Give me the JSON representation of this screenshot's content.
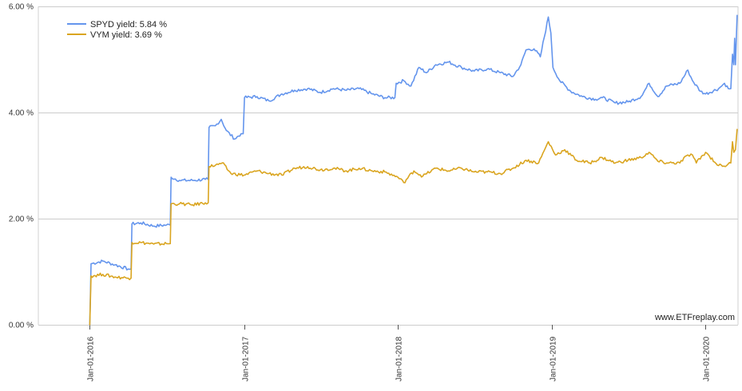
{
  "chart_data": {
    "type": "line",
    "x_axis": {
      "type": "date",
      "min": "2015-09-01",
      "max": "2020-03-18",
      "tick_labels": [
        "Jan-01-2016",
        "Jan-01-2017",
        "Jan-01-2018",
        "Jan-01-2019",
        "Jan-01-2020"
      ],
      "ticks": [
        "2016-01-01",
        "2017-01-01",
        "2018-01-01",
        "2019-01-01",
        "2020-01-01"
      ]
    },
    "y_axis": {
      "min": 0,
      "max": 6,
      "ticks": [
        0,
        2,
        4,
        6
      ],
      "tick_labels": [
        "0.00 %",
        "2.00 %",
        "4.00 %",
        "6.00 %"
      ],
      "grid": true
    },
    "legend": {
      "position": "top-left"
    },
    "watermark": "www.ETFreplay.com",
    "series": [
      {
        "name": "SPYD yield: 5.84 %",
        "color": "#6495ed",
        "points": [
          [
            "2015-12-31",
            0
          ],
          [
            "2016-01-01",
            0.0
          ],
          [
            "2016-01-04",
            1.15
          ],
          [
            "2016-02-01",
            1.2
          ],
          [
            "2016-03-01",
            1.13
          ],
          [
            "2016-04-01",
            1.05
          ],
          [
            "2016-04-08",
            1.05
          ],
          [
            "2016-04-10",
            1.9
          ],
          [
            "2016-05-01",
            1.92
          ],
          [
            "2016-06-01",
            1.86
          ],
          [
            "2016-07-01",
            1.88
          ],
          [
            "2016-07-10",
            1.88
          ],
          [
            "2016-07-12",
            2.78
          ],
          [
            "2016-08-01",
            2.72
          ],
          [
            "2016-09-01",
            2.72
          ],
          [
            "2016-10-01",
            2.74
          ],
          [
            "2016-10-08",
            2.74
          ],
          [
            "2016-10-10",
            3.72
          ],
          [
            "2016-10-25",
            3.75
          ],
          [
            "2016-11-08",
            3.87
          ],
          [
            "2016-11-20",
            3.66
          ],
          [
            "2016-12-10",
            3.5
          ],
          [
            "2016-12-25",
            3.6
          ],
          [
            "2016-12-30",
            3.6
          ],
          [
            "2017-01-02",
            4.28
          ],
          [
            "2017-02-01",
            4.3
          ],
          [
            "2017-03-01",
            4.22
          ],
          [
            "2017-04-01",
            4.35
          ],
          [
            "2017-05-01",
            4.42
          ],
          [
            "2017-06-01",
            4.45
          ],
          [
            "2017-07-01",
            4.38
          ],
          [
            "2017-08-01",
            4.45
          ],
          [
            "2017-09-01",
            4.42
          ],
          [
            "2017-10-01",
            4.45
          ],
          [
            "2017-11-01",
            4.35
          ],
          [
            "2017-12-01",
            4.28
          ],
          [
            "2017-12-25",
            4.28
          ],
          [
            "2017-12-28",
            4.55
          ],
          [
            "2018-01-15",
            4.6
          ],
          [
            "2018-02-01",
            4.5
          ],
          [
            "2018-02-20",
            4.85
          ],
          [
            "2018-03-10",
            4.75
          ],
          [
            "2018-04-01",
            4.9
          ],
          [
            "2018-05-01",
            4.95
          ],
          [
            "2018-06-01",
            4.85
          ],
          [
            "2018-07-01",
            4.78
          ],
          [
            "2018-08-01",
            4.82
          ],
          [
            "2018-09-01",
            4.75
          ],
          [
            "2018-10-01",
            4.68
          ],
          [
            "2018-10-20",
            4.9
          ],
          [
            "2018-11-01",
            5.18
          ],
          [
            "2018-11-20",
            5.2
          ],
          [
            "2018-12-05",
            5.05
          ],
          [
            "2018-12-24",
            5.8
          ],
          [
            "2018-12-30",
            5.5
          ],
          [
            "2019-01-04",
            4.85
          ],
          [
            "2019-01-20",
            4.6
          ],
          [
            "2019-02-15",
            4.4
          ],
          [
            "2019-03-15",
            4.3
          ],
          [
            "2019-04-15",
            4.25
          ],
          [
            "2019-05-01",
            4.28
          ],
          [
            "2019-06-01",
            4.18
          ],
          [
            "2019-07-01",
            4.2
          ],
          [
            "2019-08-01",
            4.3
          ],
          [
            "2019-08-20",
            4.55
          ],
          [
            "2019-09-10",
            4.3
          ],
          [
            "2019-10-01",
            4.5
          ],
          [
            "2019-11-01",
            4.55
          ],
          [
            "2019-11-20",
            4.8
          ],
          [
            "2019-12-01",
            4.6
          ],
          [
            "2019-12-20",
            4.4
          ],
          [
            "2020-01-01",
            4.35
          ],
          [
            "2020-02-01",
            4.45
          ],
          [
            "2020-02-15",
            4.55
          ],
          [
            "2020-02-24",
            4.45
          ],
          [
            "2020-03-01",
            4.45
          ],
          [
            "2020-03-05",
            5.1
          ],
          [
            "2020-03-08",
            4.9
          ],
          [
            "2020-03-10",
            5.4
          ],
          [
            "2020-03-12",
            4.9
          ],
          [
            "2020-03-16",
            5.84
          ]
        ]
      },
      {
        "name": "VYM yield: 3.69 %",
        "color": "#daa520",
        "points": [
          [
            "2015-12-31",
            0
          ],
          [
            "2016-01-01",
            0.0
          ],
          [
            "2016-01-04",
            0.92
          ],
          [
            "2016-02-01",
            0.95
          ],
          [
            "2016-03-01",
            0.9
          ],
          [
            "2016-04-01",
            0.88
          ],
          [
            "2016-04-08",
            0.88
          ],
          [
            "2016-04-10",
            1.55
          ],
          [
            "2016-05-01",
            1.55
          ],
          [
            "2016-06-01",
            1.52
          ],
          [
            "2016-07-01",
            1.53
          ],
          [
            "2016-07-10",
            1.53
          ],
          [
            "2016-07-12",
            2.28
          ],
          [
            "2016-08-01",
            2.28
          ],
          [
            "2016-09-01",
            2.26
          ],
          [
            "2016-10-01",
            2.3
          ],
          [
            "2016-10-08",
            2.3
          ],
          [
            "2016-10-10",
            2.98
          ],
          [
            "2016-11-01",
            3.02
          ],
          [
            "2016-11-10",
            3.05
          ],
          [
            "2016-12-01",
            2.85
          ],
          [
            "2017-01-01",
            2.82
          ],
          [
            "2017-02-01",
            2.9
          ],
          [
            "2017-03-01",
            2.85
          ],
          [
            "2017-04-01",
            2.82
          ],
          [
            "2017-05-01",
            2.95
          ],
          [
            "2017-06-01",
            2.98
          ],
          [
            "2017-07-01",
            2.92
          ],
          [
            "2017-08-01",
            2.95
          ],
          [
            "2017-09-01",
            2.9
          ],
          [
            "2017-10-01",
            2.95
          ],
          [
            "2017-11-01",
            2.9
          ],
          [
            "2017-12-01",
            2.88
          ],
          [
            "2018-01-01",
            2.78
          ],
          [
            "2018-01-15",
            2.68
          ],
          [
            "2018-02-08",
            2.9
          ],
          [
            "2018-03-01",
            2.8
          ],
          [
            "2018-04-01",
            2.95
          ],
          [
            "2018-05-01",
            2.9
          ],
          [
            "2018-06-01",
            2.95
          ],
          [
            "2018-07-01",
            2.88
          ],
          [
            "2018-08-01",
            2.88
          ],
          [
            "2018-09-01",
            2.85
          ],
          [
            "2018-10-01",
            2.95
          ],
          [
            "2018-11-01",
            3.1
          ],
          [
            "2018-12-01",
            3.05
          ],
          [
            "2018-12-24",
            3.45
          ],
          [
            "2019-01-10",
            3.2
          ],
          [
            "2019-02-01",
            3.3
          ],
          [
            "2019-03-01",
            3.1
          ],
          [
            "2019-04-01",
            3.05
          ],
          [
            "2019-05-01",
            3.15
          ],
          [
            "2019-06-01",
            3.05
          ],
          [
            "2019-07-01",
            3.1
          ],
          [
            "2019-08-01",
            3.15
          ],
          [
            "2019-08-20",
            3.25
          ],
          [
            "2019-09-10",
            3.08
          ],
          [
            "2019-10-01",
            3.05
          ],
          [
            "2019-11-01",
            3.05
          ],
          [
            "2019-11-20",
            3.2
          ],
          [
            "2019-12-01",
            3.2
          ],
          [
            "2019-12-10",
            3.05
          ],
          [
            "2020-01-01",
            3.25
          ],
          [
            "2020-02-01",
            3.0
          ],
          [
            "2020-02-20",
            3.0
          ],
          [
            "2020-03-01",
            3.05
          ],
          [
            "2020-03-05",
            3.45
          ],
          [
            "2020-03-08",
            3.25
          ],
          [
            "2020-03-12",
            3.3
          ],
          [
            "2020-03-16",
            3.69
          ]
        ]
      }
    ]
  }
}
